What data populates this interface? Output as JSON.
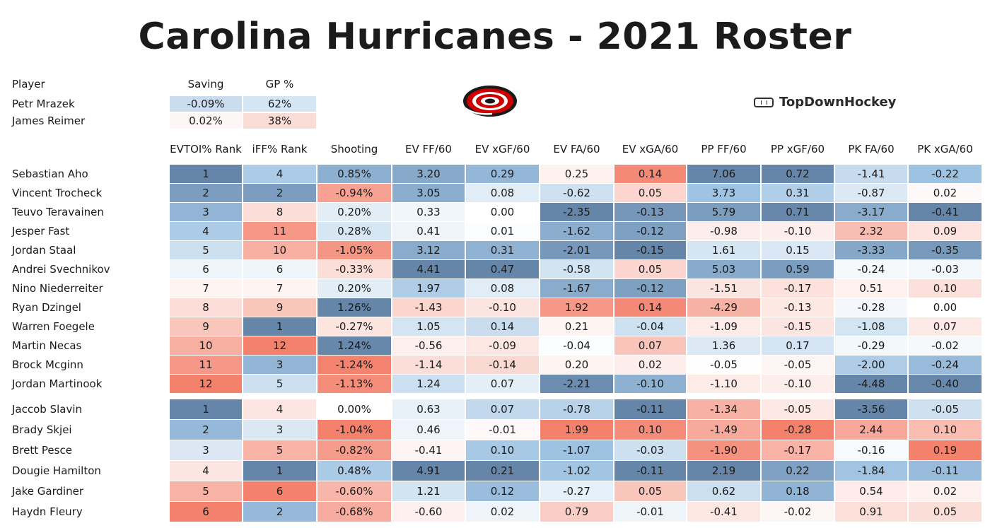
{
  "title": "Carolina Hurricanes - 2021 Roster",
  "brand": "TopDownHockey",
  "goalies": {
    "headers": [
      "Player",
      "Saving",
      "GP %"
    ],
    "rows": [
      {
        "name": "Petr Mrazek",
        "saving": "-0.09%",
        "gp": "62%"
      },
      {
        "name": "James Reimer",
        "saving": "0.02%",
        "gp": "38%"
      }
    ]
  },
  "colors": {
    "blue_strong": "#6f8fb3",
    "blue_light": "#d6e6f4",
    "red_strong": "#f27a64",
    "red_light": "#fbe1dc",
    "neutral": "#ffffff"
  },
  "chart_data": {
    "type": "table",
    "columns": [
      "EVTOI% Rank",
      "iFF% Rank",
      "Shooting",
      "EV FF/60",
      "EV xGF/60",
      "EV FA/60",
      "EV xGA/60",
      "PP FF/60",
      "PP xGF/60",
      "PK FA/60",
      "PK xGA/60"
    ],
    "forwards": [
      {
        "name": "Sebastian Aho",
        "values": [
          "1",
          "4",
          "0.85%",
          "3.20",
          "0.29",
          "0.25",
          "0.14",
          "7.06",
          "0.72",
          "-1.41",
          "-0.22"
        ]
      },
      {
        "name": "Vincent Trocheck",
        "values": [
          "2",
          "2",
          "-0.94%",
          "3.05",
          "0.08",
          "-0.62",
          "0.05",
          "3.73",
          "0.31",
          "-0.87",
          "0.02"
        ]
      },
      {
        "name": "Teuvo Teravainen",
        "values": [
          "3",
          "8",
          "0.20%",
          "0.33",
          "0.00",
          "-2.35",
          "-0.13",
          "5.79",
          "0.71",
          "-3.17",
          "-0.41"
        ]
      },
      {
        "name": "Jesper Fast",
        "values": [
          "4",
          "11",
          "0.28%",
          "0.41",
          "0.01",
          "-1.62",
          "-0.12",
          "-0.98",
          "-0.10",
          "2.32",
          "0.09"
        ]
      },
      {
        "name": "Jordan Staal",
        "values": [
          "5",
          "10",
          "-1.05%",
          "3.12",
          "0.31",
          "-2.01",
          "-0.15",
          "1.61",
          "0.15",
          "-3.33",
          "-0.35"
        ]
      },
      {
        "name": "Andrei Svechnikov",
        "values": [
          "6",
          "6",
          "-0.33%",
          "4.41",
          "0.47",
          "-0.58",
          "0.05",
          "5.03",
          "0.59",
          "-0.24",
          "-0.03"
        ]
      },
      {
        "name": "Nino Niederreiter",
        "values": [
          "7",
          "7",
          "0.20%",
          "1.97",
          "0.08",
          "-1.67",
          "-0.12",
          "-1.51",
          "-0.17",
          "0.51",
          "0.10"
        ]
      },
      {
        "name": "Ryan Dzingel",
        "values": [
          "8",
          "9",
          "1.26%",
          "-1.43",
          "-0.10",
          "1.92",
          "0.14",
          "-4.29",
          "-0.13",
          "-0.28",
          "0.00"
        ]
      },
      {
        "name": "Warren Foegele",
        "values": [
          "9",
          "1",
          "-0.27%",
          "1.05",
          "0.14",
          "0.21",
          "-0.04",
          "-1.09",
          "-0.15",
          "-1.08",
          "0.07"
        ]
      },
      {
        "name": "Martin Necas",
        "values": [
          "10",
          "12",
          "1.24%",
          "-0.56",
          "-0.09",
          "-0.04",
          "0.07",
          "1.36",
          "0.17",
          "-0.29",
          "-0.02"
        ]
      },
      {
        "name": "Brock Mcginn",
        "values": [
          "11",
          "3",
          "-1.24%",
          "-1.14",
          "-0.14",
          "0.20",
          "0.02",
          "-0.05",
          "-0.05",
          "-2.00",
          "-0.24"
        ]
      },
      {
        "name": "Jordan Martinook",
        "values": [
          "12",
          "5",
          "-1.13%",
          "1.24",
          "0.07",
          "-2.21",
          "-0.10",
          "-1.10",
          "-0.10",
          "-4.48",
          "-0.40"
        ]
      }
    ],
    "defense": [
      {
        "name": "Jaccob Slavin",
        "values": [
          "1",
          "4",
          "0.00%",
          "0.63",
          "0.07",
          "-0.78",
          "-0.11",
          "-1.34",
          "-0.05",
          "-3.56",
          "-0.05"
        ]
      },
      {
        "name": "Brady Skjei",
        "values": [
          "2",
          "3",
          "-1.04%",
          "0.46",
          "-0.01",
          "1.99",
          "0.10",
          "-1.49",
          "-0.28",
          "2.44",
          "0.10"
        ]
      },
      {
        "name": "Brett Pesce",
        "values": [
          "3",
          "5",
          "-0.82%",
          "-0.41",
          "0.10",
          "-1.07",
          "-0.03",
          "-1.90",
          "-0.17",
          "-0.16",
          "0.19"
        ]
      },
      {
        "name": "Dougie Hamilton",
        "values": [
          "4",
          "1",
          "0.48%",
          "4.91",
          "0.21",
          "-1.02",
          "-0.11",
          "2.19",
          "0.22",
          "-1.84",
          "-0.11"
        ]
      },
      {
        "name": "Jake Gardiner",
        "values": [
          "5",
          "6",
          "-0.60%",
          "1.21",
          "0.12",
          "-0.27",
          "0.05",
          "0.62",
          "0.18",
          "0.54",
          "0.02"
        ]
      },
      {
        "name": "Haydn Fleury",
        "values": [
          "6",
          "2",
          "-0.68%",
          "-0.60",
          "0.02",
          "0.79",
          "-0.01",
          "-0.41",
          "-0.02",
          "0.91",
          "0.05"
        ]
      }
    ]
  }
}
